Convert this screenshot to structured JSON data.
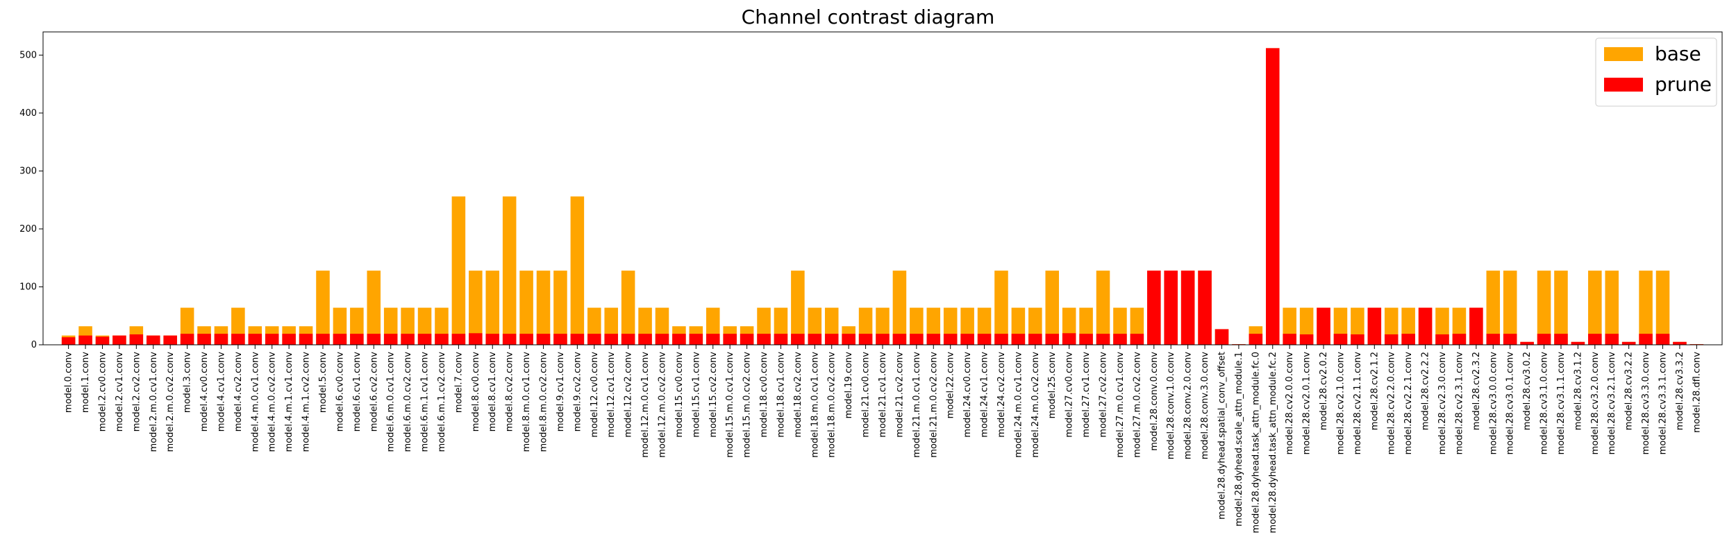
{
  "chart_data": {
    "type": "bar",
    "title": "Channel contrast diagram",
    "xlabel": "",
    "ylabel": "",
    "ylim": [
      0,
      540
    ],
    "yticks": [
      0,
      100,
      200,
      300,
      400,
      500
    ],
    "legend_position": "top-right",
    "grid": false,
    "categories": [
      "model.0.conv",
      "model.1.conv",
      "model.2.cv0.conv",
      "model.2.cv1.conv",
      "model.2.cv2.conv",
      "model.2.m.0.cv1.conv",
      "model.2.m.0.cv2.conv",
      "model.3.conv",
      "model.4.cv0.conv",
      "model.4.cv1.conv",
      "model.4.cv2.conv",
      "model.4.m.0.cv1.conv",
      "model.4.m.0.cv2.conv",
      "model.4.m.1.cv1.conv",
      "model.4.m.1.cv2.conv",
      "model.5.conv",
      "model.6.cv0.conv",
      "model.6.cv1.conv",
      "model.6.cv2.conv",
      "model.6.m.0.cv1.conv",
      "model.6.m.0.cv2.conv",
      "model.6.m.1.cv1.conv",
      "model.6.m.1.cv2.conv",
      "model.7.conv",
      "model.8.cv0.conv",
      "model.8.cv1.conv",
      "model.8.cv2.conv",
      "model.8.m.0.cv1.conv",
      "model.8.m.0.cv2.conv",
      "model.9.cv1.conv",
      "model.9.cv2.conv",
      "model.12.cv0.conv",
      "model.12.cv1.conv",
      "model.12.cv2.conv",
      "model.12.m.0.cv1.conv",
      "model.12.m.0.cv2.conv",
      "model.15.cv0.conv",
      "model.15.cv1.conv",
      "model.15.cv2.conv",
      "model.15.m.0.cv1.conv",
      "model.15.m.0.cv2.conv",
      "model.18.cv0.conv",
      "model.18.cv1.conv",
      "model.18.cv2.conv",
      "model.18.m.0.cv1.conv",
      "model.18.m.0.cv2.conv",
      "model.19.conv",
      "model.21.cv0.conv",
      "model.21.cv1.conv",
      "model.21.cv2.conv",
      "model.21.m.0.cv1.conv",
      "model.21.m.0.cv2.conv",
      "model.22.conv",
      "model.24.cv0.conv",
      "model.24.cv1.conv",
      "model.24.cv2.conv",
      "model.24.m.0.cv1.conv",
      "model.24.m.0.cv2.conv",
      "model.25.conv",
      "model.27.cv0.conv",
      "model.27.cv1.conv",
      "model.27.cv2.conv",
      "model.27.m.0.cv1.conv",
      "model.27.m.0.cv2.conv",
      "model.28.conv.0.conv",
      "model.28.conv.1.0.conv",
      "model.28.conv.2.0.conv",
      "model.28.conv.3.0.conv",
      "model.28.dyhead.spatial_conv_offset",
      "model.28.dyhead.scale_attn_module.1",
      "model.28.dyhead.task_attn_module.fc.0",
      "model.28.dyhead.task_attn_module.fc.2",
      "model.28.cv2.0.0.conv",
      "model.28.cv2.0.1.conv",
      "model.28.cv2.0.2",
      "model.28.cv2.1.0.conv",
      "model.28.cv2.1.1.conv",
      "model.28.cv2.1.2",
      "model.28.cv2.2.0.conv",
      "model.28.cv2.2.1.conv",
      "model.28.cv2.2.2",
      "model.28.cv2.3.0.conv",
      "model.28.cv2.3.1.conv",
      "model.28.cv2.3.2",
      "model.28.cv3.0.0.conv",
      "model.28.cv3.0.1.conv",
      "model.28.cv3.0.2",
      "model.28.cv3.1.0.conv",
      "model.28.cv3.1.1.conv",
      "model.28.cv3.1.2",
      "model.28.cv3.2.0.conv",
      "model.28.cv3.2.1.conv",
      "model.28.cv3.2.2",
      "model.28.cv3.3.0.conv",
      "model.28.cv3.3.1.conv",
      "model.28.cv3.3.2",
      "model.28.dfl.conv"
    ],
    "series": [
      {
        "name": "base",
        "color": "#ffa500",
        "values": [
          16,
          32,
          16,
          16,
          32,
          16,
          16,
          64,
          32,
          32,
          64,
          32,
          32,
          32,
          32,
          128,
          64,
          64,
          128,
          64,
          64,
          64,
          64,
          256,
          128,
          128,
          256,
          128,
          128,
          128,
          256,
          64,
          64,
          128,
          64,
          64,
          32,
          32,
          64,
          32,
          32,
          64,
          64,
          128,
          64,
          64,
          32,
          64,
          64,
          128,
          64,
          64,
          64,
          64,
          64,
          128,
          64,
          64,
          128,
          64,
          64,
          128,
          64,
          64,
          128,
          128,
          128,
          128,
          27,
          1,
          32,
          512,
          64,
          64,
          64,
          64,
          64,
          64,
          64,
          64,
          64,
          64,
          64,
          64,
          128,
          128,
          5,
          128,
          128,
          5,
          128,
          128,
          5,
          128,
          128,
          5,
          1
        ]
      },
      {
        "name": "prune",
        "color": "#ff0000",
        "values": [
          13,
          16,
          14,
          16,
          18,
          16,
          16,
          19,
          19,
          19,
          19,
          19,
          19,
          19,
          19,
          19,
          19,
          19,
          19,
          19,
          19,
          19,
          19,
          19,
          20,
          19,
          19,
          19,
          19,
          19,
          19,
          19,
          19,
          19,
          19,
          19,
          19,
          19,
          19,
          19,
          19,
          19,
          19,
          19,
          19,
          19,
          19,
          19,
          19,
          19,
          19,
          19,
          19,
          19,
          19,
          19,
          19,
          19,
          19,
          20,
          19,
          19,
          19,
          19,
          128,
          128,
          128,
          128,
          27,
          1,
          19,
          512,
          19,
          18,
          64,
          19,
          18,
          64,
          18,
          19,
          64,
          18,
          19,
          64,
          19,
          19,
          5,
          19,
          19,
          5,
          19,
          19,
          5,
          19,
          19,
          5,
          1
        ]
      }
    ]
  }
}
